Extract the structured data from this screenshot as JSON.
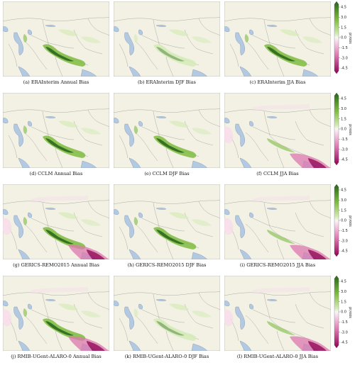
{
  "figure": {
    "rows": [
      {
        "panels": [
          {
            "caption": "(a) ERAInterim Annual Bias",
            "mode": "green"
          },
          {
            "caption": "(b) ERAInterim DJF Bias",
            "mode": "green-light"
          },
          {
            "caption": "(c) ERAInterim JJA Bias",
            "mode": "green"
          }
        ]
      },
      {
        "panels": [
          {
            "caption": "(d) CCLM Annual Bias",
            "mode": "green"
          },
          {
            "caption": "(e) CCLM DJF Bias",
            "mode": "green"
          },
          {
            "caption": "(f) CCLM JJA Bias",
            "mode": "pink"
          }
        ]
      },
      {
        "panels": [
          {
            "caption": "(g) GERICS-REMO2015 Annual Bias",
            "mode": "mixed"
          },
          {
            "caption": "(h) GERICS-REMO2015 DJF Bias",
            "mode": "green"
          },
          {
            "caption": "(i) GERICS-REMO2015 JJA Bias",
            "mode": "pink"
          }
        ]
      },
      {
        "panels": [
          {
            "caption": "(j) RMIB-UGent-ALARO-0 Annual Bias",
            "mode": "mixed"
          },
          {
            "caption": "(k) RMIB-UGent-ALARO-0 DJF Bias",
            "mode": "green-light"
          },
          {
            "caption": "(l) RMIB-UGent-ALARO-0 JJA Bias",
            "mode": "pink"
          }
        ]
      }
    ],
    "colorbar": {
      "label": "pr/obs",
      "ticks": [
        "4.5",
        "3.0",
        "1.5",
        "0.0",
        "-1.5",
        "-3.0",
        "-4.5"
      ]
    },
    "colors": {
      "land": "#f2f1e4",
      "water": "#b3c8e1",
      "border": "#8c8c8c",
      "green_dark": "#276419",
      "green_mid": "#7fbc41",
      "green_light": "#d5ebb6",
      "pink_dark": "#8e0152",
      "pink_mid": "#de77ae",
      "pink_light": "#f7dceb"
    }
  }
}
